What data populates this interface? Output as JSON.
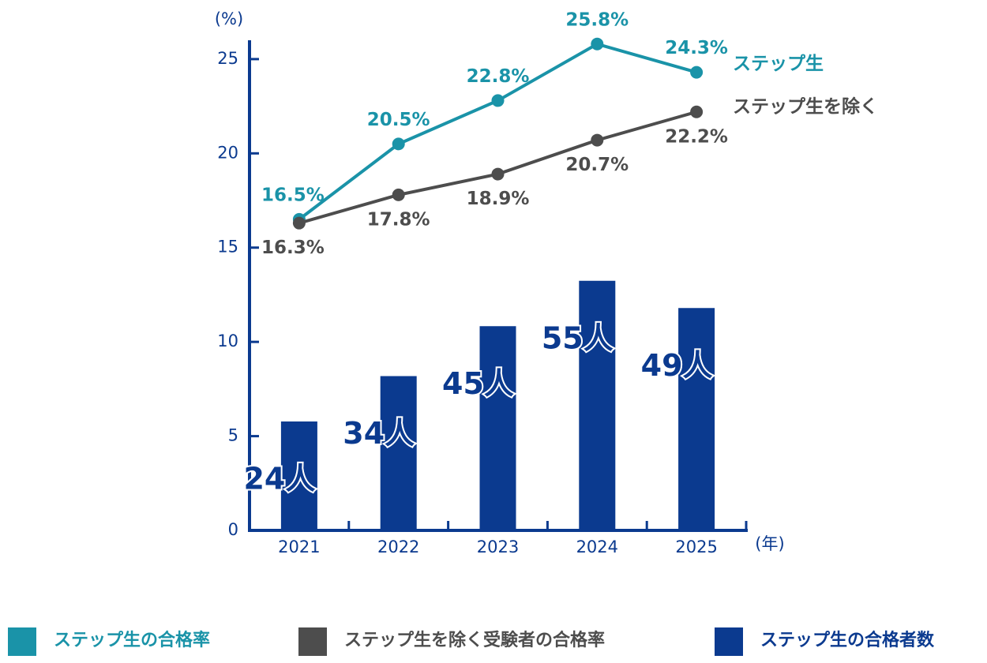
{
  "chart_data": {
    "type": "bar-line",
    "ylabel": "(%)",
    "xlabel": "(年)",
    "categories": [
      "2021",
      "2022",
      "2023",
      "2024",
      "2025"
    ],
    "ylim": [
      0,
      26
    ],
    "yticks": [
      0,
      5,
      10,
      15,
      20,
      25
    ],
    "y2lim": [
      0,
      108
    ],
    "series": [
      {
        "name": "ステップ生の合格率",
        "end_label": "ステップ生",
        "type": "line",
        "color": "#1a93a8",
        "values": [
          16.5,
          20.5,
          22.8,
          25.8,
          24.3
        ],
        "value_labels": [
          "16.5%",
          "20.5%",
          "22.8%",
          "25.8%",
          "24.3%"
        ],
        "label_side": "above"
      },
      {
        "name": "ステップ生を除く受験者の合格率",
        "end_label": "ステップ生を除く",
        "type": "line",
        "color": "#4d4d4d",
        "values": [
          16.3,
          17.8,
          18.9,
          20.7,
          22.2
        ],
        "value_labels": [
          "16.3%",
          "17.8%",
          "18.9%",
          "20.7%",
          "22.2%"
        ],
        "label_side": "below"
      },
      {
        "name": "ステップ生の合格者数",
        "type": "bar",
        "axis": "y2",
        "color": "#0b3a8f",
        "values": [
          24,
          34,
          45,
          55,
          49
        ],
        "value_labels": [
          "24人",
          "34人",
          "45人",
          "55人",
          "49人"
        ]
      }
    ]
  }
}
